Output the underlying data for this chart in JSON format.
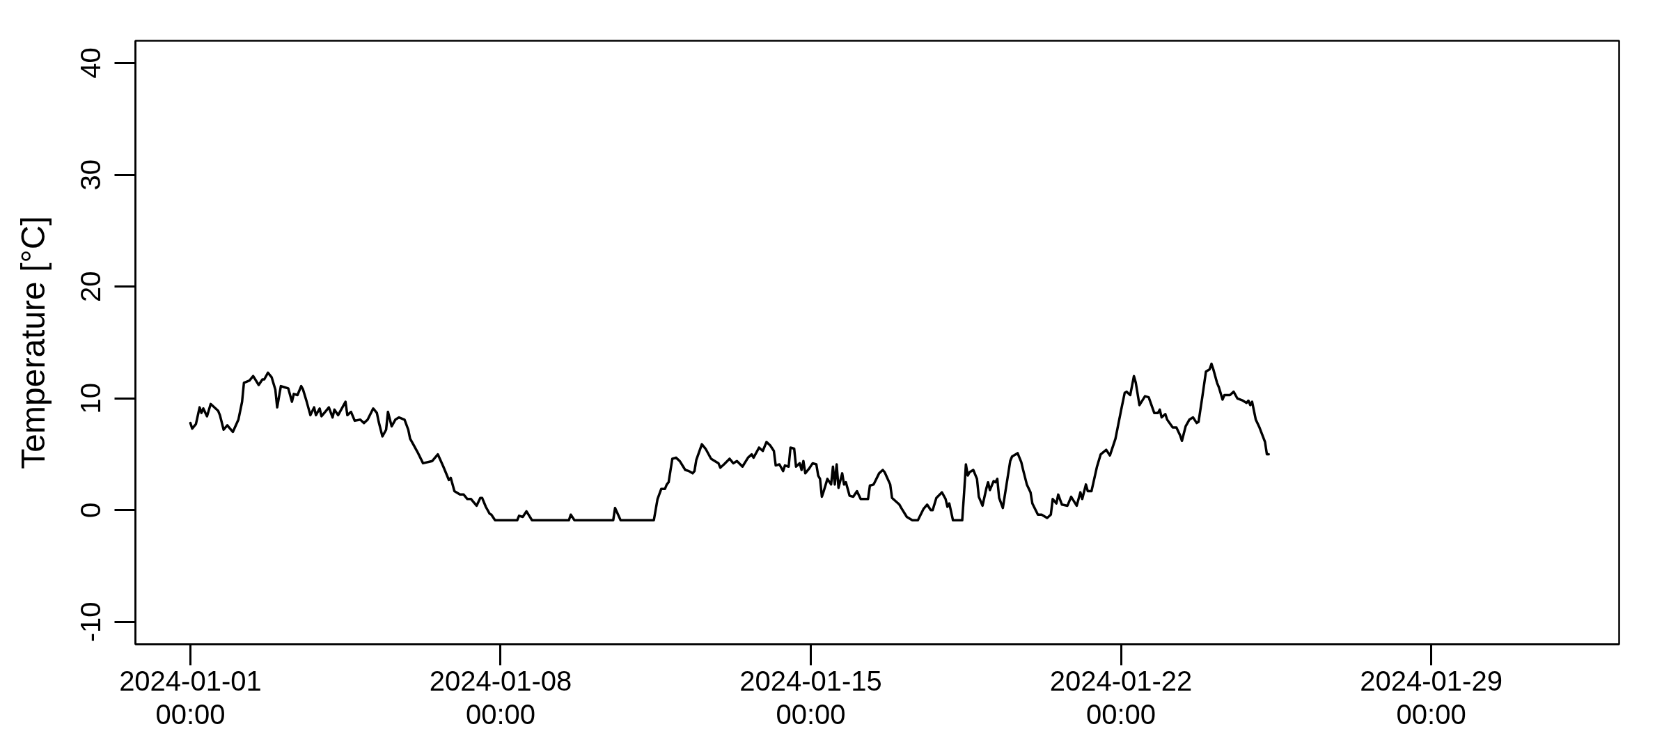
{
  "chart_data": {
    "type": "line",
    "ylabel": "Temperature [°C]",
    "xlim": [
      "2023-12-30T18:14",
      "2024-02-02T05:46"
    ],
    "xticks": [
      {
        "value": "2024-01-01T00:00",
        "label": "2024-01-01\n00:00"
      },
      {
        "value": "2024-01-08T00:00",
        "label": "2024-01-08\n00:00"
      },
      {
        "value": "2024-01-15T00:00",
        "label": "2024-01-15\n00:00"
      },
      {
        "value": "2024-01-22T00:00",
        "label": "2024-01-22\n00:00"
      },
      {
        "value": "2024-01-29T00:00",
        "label": "2024-01-29\n00:00"
      }
    ],
    "ylim": [
      -12,
      42
    ],
    "yticks": [
      -10,
      0,
      10,
      20,
      30,
      40
    ],
    "x": [
      "2024-01-01T00:00",
      "2024-01-01T01:00",
      "2024-01-01T03:00",
      "2024-01-01T05:00",
      "2024-01-01T06:00",
      "2024-01-01T07:00",
      "2024-01-01T09:00",
      "2024-01-01T11:00",
      "2024-01-01T15:00",
      "2024-01-01T16:00",
      "2024-01-01T18:00",
      "2024-01-01T20:00",
      "2024-01-01T21:00",
      "2024-01-01T23:00",
      "2024-01-02T02:00",
      "2024-01-02T04:00",
      "2024-01-02T05:00",
      "2024-01-02T08:00",
      "2024-01-02T10:00",
      "2024-01-02T13:00",
      "2024-01-02T15:00",
      "2024-01-02T16:00",
      "2024-01-02T18:00",
      "2024-01-02T20:00",
      "2024-01-02T22:00",
      "2024-01-02T23:00",
      "2024-01-03T01:00",
      "2024-01-03T03:00",
      "2024-01-03T05:00",
      "2024-01-03T07:00",
      "2024-01-03T08:00",
      "2024-01-03T10:00",
      "2024-01-03T12:00",
      "2024-01-03T13:00",
      "2024-01-03T15:00",
      "2024-01-03T17:00",
      "2024-01-03T19:00",
      "2024-01-03T20:00",
      "2024-01-03T22:00",
      "2024-01-03T23:00",
      "2024-01-04T01:00",
      "2024-01-04T03:00",
      "2024-01-04T05:00",
      "2024-01-04T06:00",
      "2024-01-04T08:00",
      "2024-01-04T12:00",
      "2024-01-04T13:00",
      "2024-01-04T15:00",
      "2024-01-04T17:00",
      "2024-01-04T20:00",
      "2024-01-04T22:00",
      "2024-01-05T00:00",
      "2024-01-05T03:00",
      "2024-01-05T05:00",
      "2024-01-05T06:00",
      "2024-01-05T08:00",
      "2024-01-05T10:00",
      "2024-01-05T11:00",
      "2024-01-05T13:00",
      "2024-01-05T15:00",
      "2024-01-05T17:00",
      "2024-01-05T20:00",
      "2024-01-05T22:00",
      "2024-01-05T23:00",
      "2024-01-06T01:00",
      "2024-01-06T03:00",
      "2024-01-06T06:00",
      "2024-01-06T11:00",
      "2024-01-06T14:00",
      "2024-01-06T17:00",
      "2024-01-06T20:00",
      "2024-01-06T21:00",
      "2024-01-06T23:00",
      "2024-01-07T02:00",
      "2024-01-07T04:00",
      "2024-01-07T06:00",
      "2024-01-07T08:00",
      "2024-01-07T11:00",
      "2024-01-07T13:00",
      "2024-01-07T14:00",
      "2024-01-07T16:00",
      "2024-01-07T18:00",
      "2024-01-07T19:00",
      "2024-01-07T21:00",
      "2024-01-08T09:00",
      "2024-01-08T10:00",
      "2024-01-08T12:00",
      "2024-01-08T14:00",
      "2024-01-08T17:00",
      "2024-01-09T13:00",
      "2024-01-09T14:00",
      "2024-01-09T16:00",
      "2024-01-10T13:00",
      "2024-01-10T14:00",
      "2024-01-10T17:00",
      "2024-01-11T11:00",
      "2024-01-11T13:00",
      "2024-01-11T15:00",
      "2024-01-11T17:00",
      "2024-01-11T18:00",
      "2024-01-11T19:00",
      "2024-01-11T21:00",
      "2024-01-11T23:00",
      "2024-01-12T01:00",
      "2024-01-12T04:00",
      "2024-01-12T06:00",
      "2024-01-12T08:00",
      "2024-01-12T09:00",
      "2024-01-12T10:00",
      "2024-01-12T13:00",
      "2024-01-12T15:00",
      "2024-01-12T18:00",
      "2024-01-12T20:00",
      "2024-01-12T22:00",
      "2024-01-12T23:00",
      "2024-01-13T01:00",
      "2024-01-13T04:00",
      "2024-01-13T06:00",
      "2024-01-13T08:00",
      "2024-01-13T11:00",
      "2024-01-13T14:00",
      "2024-01-13T16:00",
      "2024-01-13T17:00",
      "2024-01-13T20:00",
      "2024-01-13T22:00",
      "2024-01-14T00:00",
      "2024-01-14T02:00",
      "2024-01-14T04:00",
      "2024-01-14T05:00",
      "2024-01-14T07:00",
      "2024-01-14T09:00",
      "2024-01-14T10:00",
      "2024-01-14T12:00",
      "2024-01-14T13:00",
      "2024-01-14T15:00",
      "2024-01-14T16:00",
      "2024-01-14T18:00",
      "2024-01-14T19:00",
      "2024-01-14T20:00",
      "2024-01-14T21:00",
      "2024-01-14T23:00",
      "2024-01-15T01:00",
      "2024-01-15T03:00",
      "2024-01-15T04:00",
      "2024-01-15T05:00",
      "2024-01-15T06:00",
      "2024-01-15T07:00",
      "2024-01-15T09:00",
      "2024-01-15T11:00",
      "2024-01-15T12:00",
      "2024-01-15T13:00",
      "2024-01-15T14:00",
      "2024-01-15T15:00",
      "2024-01-15T17:00",
      "2024-01-15T18:00",
      "2024-01-15T19:00",
      "2024-01-15T21:00",
      "2024-01-15T23:00",
      "2024-01-16T01:00",
      "2024-01-16T03:00",
      "2024-01-16T07:00",
      "2024-01-16T08:00",
      "2024-01-16T10:00",
      "2024-01-16T13:00",
      "2024-01-16T15:00",
      "2024-01-16T16:00",
      "2024-01-16T19:00",
      "2024-01-16T20:00",
      "2024-01-17T00:00",
      "2024-01-17T01:00",
      "2024-01-17T04:00",
      "2024-01-17T07:00",
      "2024-01-17T10:00",
      "2024-01-17T13:00",
      "2024-01-17T15:00",
      "2024-01-17T17:00",
      "2024-01-17T18:00",
      "2024-01-17T20:00",
      "2024-01-17T23:00",
      "2024-01-18T01:00",
      "2024-01-18T02:00",
      "2024-01-18T03:00",
      "2024-01-18T05:00",
      "2024-01-18T10:00",
      "2024-01-18T11:00",
      "2024-01-18T12:00",
      "2024-01-18T13:00",
      "2024-01-18T14:00",
      "2024-01-18T16:00",
      "2024-01-18T18:00",
      "2024-01-18T19:00",
      "2024-01-18T21:00",
      "2024-01-18T23:00",
      "2024-01-19T00:00",
      "2024-01-19T01:00",
      "2024-01-19T03:00",
      "2024-01-19T04:00",
      "2024-01-19T05:00",
      "2024-01-19T06:00",
      "2024-01-19T08:00",
      "2024-01-19T10:00",
      "2024-01-19T12:00",
      "2024-01-19T13:00",
      "2024-01-19T16:00",
      "2024-01-19T18:00",
      "2024-01-19T19:00",
      "2024-01-19T21:00",
      "2024-01-19T23:00",
      "2024-01-20T00:00",
      "2024-01-20T03:00",
      "2024-01-20T05:00",
      "2024-01-20T08:00",
      "2024-01-20T10:00",
      "2024-01-20T11:00",
      "2024-01-20T13:00",
      "2024-01-20T14:00",
      "2024-01-20T16:00",
      "2024-01-20T19:00",
      "2024-01-20T21:00",
      "2024-01-21T00:00",
      "2024-01-21T02:00",
      "2024-01-21T03:00",
      "2024-01-21T05:00",
      "2024-01-21T06:00",
      "2024-01-21T08:00",
      "2024-01-21T11:00",
      "2024-01-21T13:00",
      "2024-01-21T16:00",
      "2024-01-21T18:00",
      "2024-01-21T21:00",
      "2024-01-22T00:00",
      "2024-01-22T02:00",
      "2024-01-22T03:00",
      "2024-01-22T05:00",
      "2024-01-22T07:00",
      "2024-01-22T08:00",
      "2024-01-22T10:00",
      "2024-01-22T13:00",
      "2024-01-22T15:00",
      "2024-01-22T18:00",
      "2024-01-22T20:00",
      "2024-01-22T21:00",
      "2024-01-22T22:00",
      "2024-01-23T00:00",
      "2024-01-23T01:00",
      "2024-01-23T04:00",
      "2024-01-23T06:00",
      "2024-01-23T08:00",
      "2024-01-23T09:00",
      "2024-01-23T11:00",
      "2024-01-23T13:00",
      "2024-01-23T15:00",
      "2024-01-23T17:00",
      "2024-01-23T18:00",
      "2024-01-23T20:00",
      "2024-01-23T22:00",
      "2024-01-24T00:00",
      "2024-01-24T01:00",
      "2024-01-24T02:00",
      "2024-01-24T04:00",
      "2024-01-24T05:00",
      "2024-01-24T07:00",
      "2024-01-24T08:00",
      "2024-01-24T11:00",
      "2024-01-24T13:00",
      "2024-01-24T15:00",
      "2024-01-24T18:00",
      "2024-01-24T20:00",
      "2024-01-24T21:00",
      "2024-01-24T22:00",
      "2024-01-24T23:00",
      "2024-01-25T01:00",
      "2024-01-25T03:00",
      "2024-01-25T06:00",
      "2024-01-25T07:00",
      "2024-01-25T08:00"
    ],
    "series": [
      {
        "color": "#000000",
        "values": [
          7.8,
          7.3,
          7.7,
          9.2,
          8.7,
          9.1,
          8.4,
          9.5,
          8.9,
          8.5,
          7.2,
          7.6,
          7.4,
          7.0,
          8.1,
          9.7,
          11.4,
          11.6,
          12.0,
          11.2,
          11.7,
          11.7,
          12.3,
          11.9,
          10.8,
          9.2,
          11.1,
          11.0,
          10.9,
          9.7,
          10.4,
          10.3,
          11.1,
          10.8,
          9.7,
          8.5,
          9.2,
          8.5,
          9.1,
          8.4,
          8.8,
          9.2,
          8.3,
          9.0,
          8.5,
          9.7,
          8.5,
          8.8,
          8.0,
          8.1,
          7.8,
          8.1,
          9.1,
          8.7,
          7.9,
          6.6,
          7.2,
          8.8,
          7.5,
          8.1,
          8.3,
          8.1,
          7.2,
          6.4,
          5.8,
          5.2,
          4.2,
          4.4,
          5.0,
          3.9,
          2.7,
          2.9,
          1.7,
          1.4,
          1.4,
          1.0,
          1.0,
          0.4,
          1.1,
          1.1,
          0.3,
          -0.3,
          -0.4,
          -0.9,
          -0.9,
          -0.5,
          -0.6,
          -0.1,
          -0.9,
          -0.9,
          -0.4,
          -0.9,
          -0.9,
          0.2,
          -0.9,
          -0.9,
          1.0,
          1.9,
          1.9,
          2.3,
          2.5,
          4.6,
          4.7,
          4.4,
          3.6,
          3.5,
          3.3,
          3.5,
          4.5,
          5.9,
          5.5,
          4.6,
          4.4,
          4.2,
          3.8,
          4.1,
          4.6,
          4.2,
          4.4,
          3.9,
          4.7,
          5.0,
          4.7,
          5.6,
          5.3,
          6.1,
          5.8,
          5.3,
          4.0,
          4.1,
          3.5,
          4.0,
          3.9,
          5.6,
          5.5,
          3.9,
          4.2,
          3.6,
          4.4,
          3.3,
          3.7,
          4.2,
          4.1,
          3.1,
          2.8,
          1.2,
          1.7,
          2.8,
          2.3,
          3.9,
          2.3,
          4.1,
          2.0,
          3.3,
          2.3,
          2.5,
          1.3,
          1.2,
          1.7,
          1.0,
          1.0,
          2.2,
          2.3,
          3.3,
          3.6,
          3.4,
          2.3,
          1.1,
          0.5,
          0.2,
          -0.6,
          -0.9,
          -0.9,
          0.1,
          0.5,
          0.0,
          0.0,
          1.1,
          1.6,
          1.0,
          0.3,
          0.6,
          -0.9,
          -0.9,
          1.5,
          4.1,
          3.1,
          3.4,
          3.6,
          2.8,
          1.2,
          0.4,
          1.9,
          2.5,
          1.8,
          2.6,
          2.5,
          2.8,
          1.1,
          0.2,
          2.3,
          4.4,
          4.8,
          5.1,
          4.3,
          3.6,
          2.3,
          1.6,
          0.6,
          -0.4,
          -0.4,
          -0.7,
          -0.4,
          1.0,
          0.6,
          1.4,
          0.5,
          0.4,
          1.2,
          0.4,
          1.6,
          1.0,
          2.3,
          1.7,
          1.7,
          3.9,
          5.0,
          5.4,
          4.9,
          6.4,
          8.9,
          10.5,
          10.6,
          10.3,
          12.0,
          11.4,
          9.4,
          10.2,
          10.1,
          8.7,
          8.7,
          9.0,
          8.3,
          8.6,
          8.1,
          7.4,
          7.4,
          6.7,
          6.2,
          7.5,
          8.1,
          8.3,
          7.8,
          7.9,
          10.1,
          12.4,
          12.6,
          13.1,
          12.6,
          11.4,
          11.0,
          9.9,
          10.3,
          10.3,
          10.6,
          10.0,
          9.8,
          9.6,
          9.8,
          9.4,
          9.7,
          8.1,
          7.4,
          6.1,
          5.0,
          5.0
        ]
      }
    ]
  }
}
